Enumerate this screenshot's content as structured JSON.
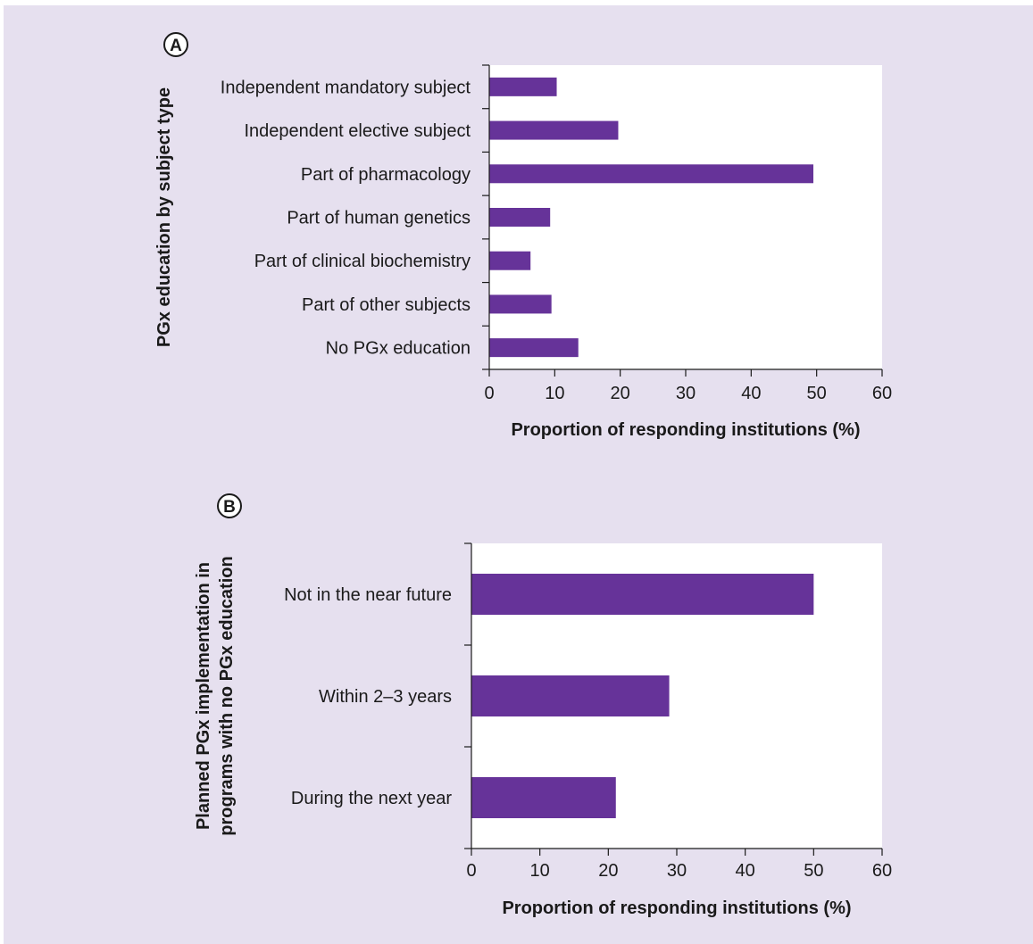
{
  "chart_data": [
    {
      "panel_label": "A",
      "type": "bar",
      "orientation": "horizontal",
      "categories": [
        "Independent mandatory subject",
        "Independent elective subject",
        "Part of pharmacology",
        "Part of human genetics",
        "Part of clinical biochemistry",
        "Part of other subjects",
        "No PGx education"
      ],
      "values": [
        10.3,
        19.7,
        49.5,
        9.3,
        6.3,
        9.5,
        13.6
      ],
      "xlabel": "Proportion of responding institutions (%)",
      "ylabel": "PGx education by subject type",
      "xlim": [
        0,
        60
      ],
      "xticks": [
        0,
        10,
        20,
        30,
        40,
        50,
        60
      ],
      "bar_color": "#663399",
      "grid": false,
      "legend": "none"
    },
    {
      "panel_label": "B",
      "type": "bar",
      "orientation": "horizontal",
      "categories": [
        "Not in the near future",
        "Within 2–3 years",
        "During the next year"
      ],
      "values": [
        50.0,
        28.9,
        21.1
      ],
      "xlabel": "Proportion of responding institutions (%)",
      "ylabel": [
        "Planned PGx implementation in",
        "programs with no PGx education"
      ],
      "xlim": [
        0,
        60
      ],
      "xticks": [
        0,
        10,
        20,
        30,
        40,
        50,
        60
      ],
      "bar_color": "#663399",
      "grid": false,
      "legend": "none"
    }
  ]
}
